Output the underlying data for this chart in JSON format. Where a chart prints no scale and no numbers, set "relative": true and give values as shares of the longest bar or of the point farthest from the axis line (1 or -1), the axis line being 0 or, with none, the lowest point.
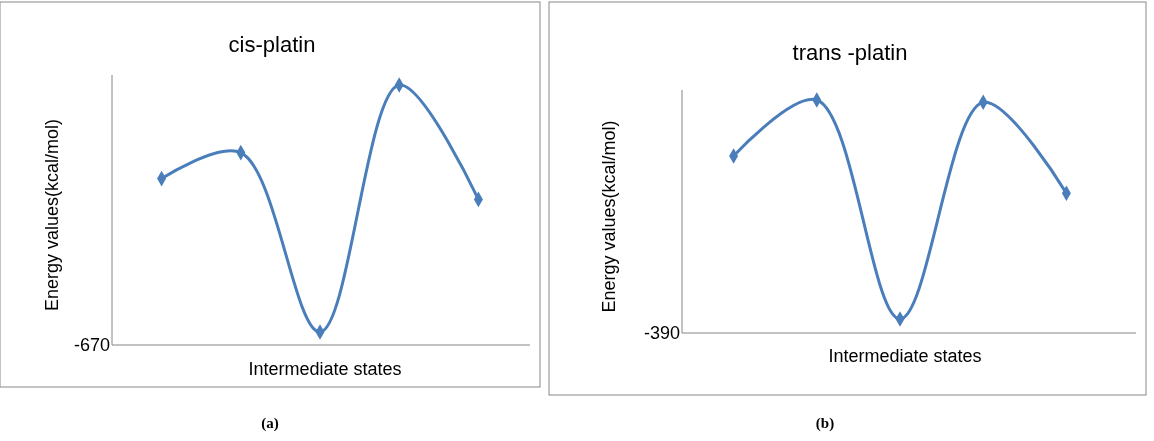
{
  "chart_data": [
    {
      "type": "line",
      "title": "cis-platin",
      "xlabel": "Intermediate states",
      "ylabel": "Energy values(kcal/mol)",
      "categories": [
        null,
        null,
        null,
        null,
        null
      ],
      "relative": true,
      "series": [
        {
          "color": "#4a7ebb",
          "values": [
            0.64,
            0.74,
            0.05,
            1,
            0.56
          ]
        }
      ],
      "marker": "diamond",
      "annotations": [
        "-670",
        "(a)"
      ]
    },
    {
      "type": "line",
      "title": "trans -platin",
      "xlabel": "Intermediate states",
      "ylabel": "Energy values(kcal/mol)",
      "categories": [
        null,
        null,
        null,
        null,
        null
      ],
      "relative": true,
      "series": [
        {
          "color": "#4a7ebb",
          "values": [
            0.76,
            1,
            0.06,
            0.99,
            0.6
          ]
        }
      ],
      "marker": "diamond",
      "annotations": [
        "-390",
        "(b)"
      ]
    }
  ]
}
